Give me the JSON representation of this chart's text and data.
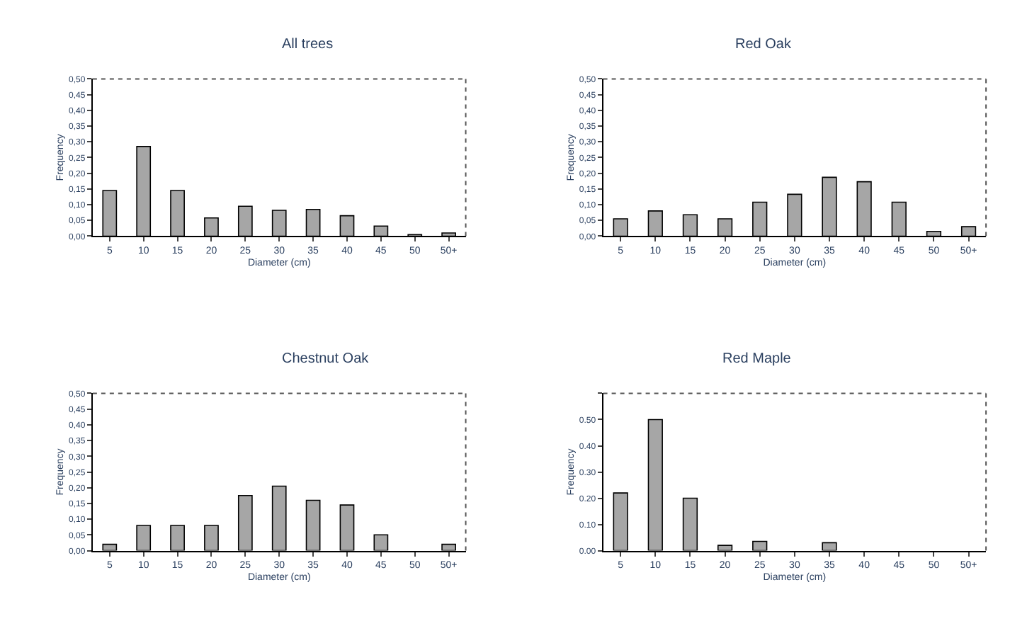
{
  "chart_data": [
    {
      "type": "bar",
      "title": "All trees",
      "xlabel": "Diameter (cm)",
      "ylabel": "Frequency",
      "categories": [
        "5",
        "10",
        "15",
        "20",
        "25",
        "30",
        "35",
        "40",
        "45",
        "50",
        "50+"
      ],
      "values": [
        0.145,
        0.285,
        0.145,
        0.058,
        0.095,
        0.082,
        0.085,
        0.065,
        0.032,
        0.005,
        0.01
      ],
      "color": "#a6a6a6",
      "ylim": [
        0,
        0.5
      ],
      "yticks": [
        {
          "value": 0,
          "label": "0,00"
        },
        {
          "value": 0.05,
          "label": "0,05"
        },
        {
          "value": 0.1,
          "label": "0,10"
        },
        {
          "value": 0.15,
          "label": "0,15"
        },
        {
          "value": 0.2,
          "label": "0,20"
        },
        {
          "value": 0.25,
          "label": "0,25"
        },
        {
          "value": 0.3,
          "label": "0,30"
        },
        {
          "value": 0.35,
          "label": "0,35"
        },
        {
          "value": 0.4,
          "label": "0,40"
        },
        {
          "value": 0.45,
          "label": "0,45"
        },
        {
          "value": 0.5,
          "label": "0,50"
        }
      ]
    },
    {
      "type": "bar",
      "title": "Red Oak",
      "xlabel": "Diameter (cm)",
      "ylabel": "Frequency",
      "categories": [
        "5",
        "10",
        "15",
        "20",
        "25",
        "30",
        "35",
        "40",
        "45",
        "50",
        "50+"
      ],
      "values": [
        0.055,
        0.08,
        0.068,
        0.055,
        0.108,
        0.133,
        0.187,
        0.173,
        0.108,
        0.015,
        0.03
      ],
      "color": "#a6a6a6",
      "ylim": [
        0,
        0.5
      ],
      "yticks": [
        {
          "value": 0,
          "label": "0,00"
        },
        {
          "value": 0.05,
          "label": "0,05"
        },
        {
          "value": 0.1,
          "label": "0,10"
        },
        {
          "value": 0.15,
          "label": "0,15"
        },
        {
          "value": 0.2,
          "label": "0,20"
        },
        {
          "value": 0.25,
          "label": "0,25"
        },
        {
          "value": 0.3,
          "label": "0,30"
        },
        {
          "value": 0.35,
          "label": "0,35"
        },
        {
          "value": 0.4,
          "label": "0,40"
        },
        {
          "value": 0.45,
          "label": "0,45"
        },
        {
          "value": 0.5,
          "label": "0,50"
        }
      ]
    },
    {
      "type": "bar",
      "title": "Chestnut Oak",
      "xlabel": "Diameter (cm)",
      "ylabel": "Frequency",
      "categories": [
        "5",
        "10",
        "15",
        "20",
        "25",
        "30",
        "35",
        "40",
        "45",
        "50",
        "50+"
      ],
      "values": [
        0.02,
        0.08,
        0.08,
        0.08,
        0.175,
        0.205,
        0.16,
        0.145,
        0.05,
        0,
        0.02
      ],
      "color": "#a6a6a6",
      "ylim": [
        0,
        0.5
      ],
      "yticks": [
        {
          "value": 0,
          "label": "0,00"
        },
        {
          "value": 0.05,
          "label": "0,05"
        },
        {
          "value": 0.1,
          "label": "0,10"
        },
        {
          "value": 0.15,
          "label": "0,15"
        },
        {
          "value": 0.2,
          "label": "0,20"
        },
        {
          "value": 0.25,
          "label": "0,25"
        },
        {
          "value": 0.3,
          "label": "0,30"
        },
        {
          "value": 0.35,
          "label": "0,35"
        },
        {
          "value": 0.4,
          "label": "0,40"
        },
        {
          "value": 0.45,
          "label": "0,45"
        },
        {
          "value": 0.5,
          "label": "0,50"
        }
      ]
    },
    {
      "type": "bar",
      "title": "Red Maple",
      "xlabel": "Diameter (cm)",
      "ylabel": "Frequency",
      "categories": [
        "5",
        "10",
        "15",
        "20",
        "25",
        "30",
        "35",
        "40",
        "45",
        "50",
        "50+"
      ],
      "values": [
        0.22,
        0.5,
        0.2,
        0.02,
        0.035,
        0,
        0.03,
        0,
        0,
        0,
        0
      ],
      "color": "#a6a6a6",
      "ylim": [
        0,
        0.6
      ],
      "yticks": [
        {
          "value": 0,
          "label": "0.00"
        },
        {
          "value": 0.1,
          "label": "0.10"
        },
        {
          "value": 0.2,
          "label": "0.20"
        },
        {
          "value": 0.3,
          "label": "0.30"
        },
        {
          "value": 0.4,
          "label": "0.40"
        },
        {
          "value": 0.5,
          "label": "0.50"
        },
        {
          "value": 0.6,
          "label": null
        }
      ]
    }
  ]
}
